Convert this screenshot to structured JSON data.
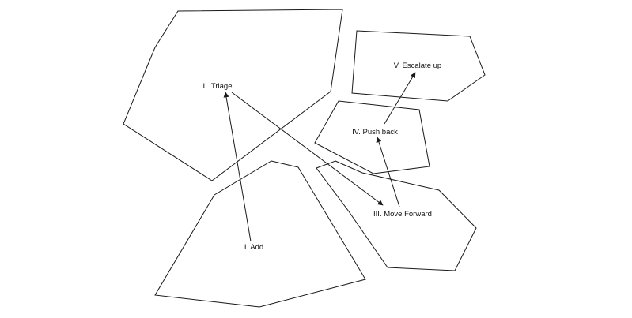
{
  "diagram": {
    "nodes": [
      {
        "id": "add",
        "label": "I. Add"
      },
      {
        "id": "triage",
        "label": "II. Triage"
      },
      {
        "id": "move_forward",
        "label": "III. Move Forward"
      },
      {
        "id": "push_back",
        "label": "IV. Push back"
      },
      {
        "id": "escalate_up",
        "label": "V. Escalate up"
      }
    ],
    "edges": [
      {
        "from": "add",
        "to": "triage"
      },
      {
        "from": "triage",
        "to": "move_forward"
      },
      {
        "from": "move_forward",
        "to": "push_back"
      },
      {
        "from": "push_back",
        "to": "escalate_up"
      }
    ],
    "colors": {
      "stroke": "#1a1a1a",
      "background": "#ffffff",
      "text": "#111111"
    }
  }
}
